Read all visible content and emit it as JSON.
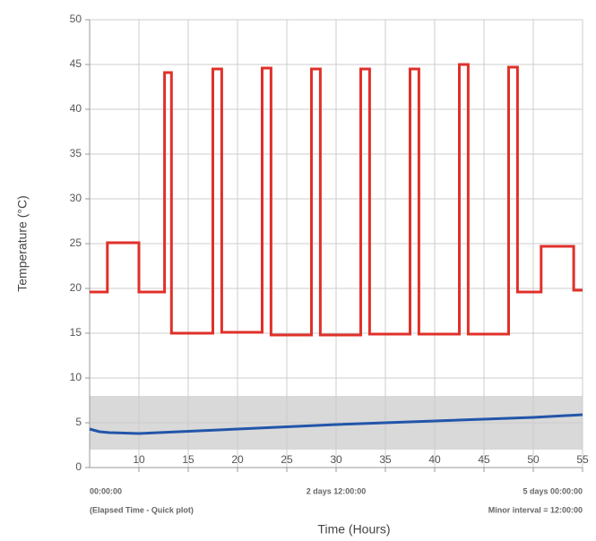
{
  "chart_data": {
    "type": "line",
    "x_label": "Time (Hours)",
    "y_label": "Temperature (°C)",
    "annotations": [
      "00:00:00",
      "2 days  12:00:00",
      "5 days  00:00:00",
      "(Elapsed Time - Quick plot)",
      "Minor interval = 12:00:00"
    ],
    "xlim": [
      5,
      55
    ],
    "xticks": [
      10,
      15,
      20,
      25,
      30,
      35,
      40,
      45,
      50,
      55
    ],
    "ylim": [
      0,
      50
    ],
    "yticks": [
      0,
      5,
      10,
      15,
      20,
      25,
      30,
      35,
      40,
      45,
      50
    ],
    "grid": true,
    "band": {
      "range": [
        2,
        8
      ],
      "color": "#d9d9d9"
    },
    "series": [
      {
        "color": "#e0302a",
        "step": true,
        "x": [
          5,
          6.8,
          10,
          12.6,
          13.3,
          17.5,
          18.4,
          22.5,
          23.4,
          27.5,
          28.4,
          32.5,
          33.4,
          37.5,
          38.4,
          42.5,
          43.4,
          47.5,
          48.4,
          50.8,
          54.1,
          55
        ],
        "values": [
          19.6,
          25.1,
          19.6,
          44.1,
          15,
          44.5,
          15.1,
          44.6,
          14.8,
          44.5,
          14.8,
          44.5,
          14.9,
          44.5,
          14.9,
          45,
          14.9,
          44.7,
          19.6,
          24.7,
          19.8,
          19.8
        ]
      },
      {
        "color": "#2255aa",
        "step": false,
        "x": [
          5,
          6,
          7,
          10,
          20,
          30,
          40,
          50,
          55
        ],
        "values": [
          4.3,
          4.0,
          3.9,
          3.8,
          4.3,
          4.8,
          5.2,
          5.6,
          5.9
        ]
      }
    ]
  }
}
